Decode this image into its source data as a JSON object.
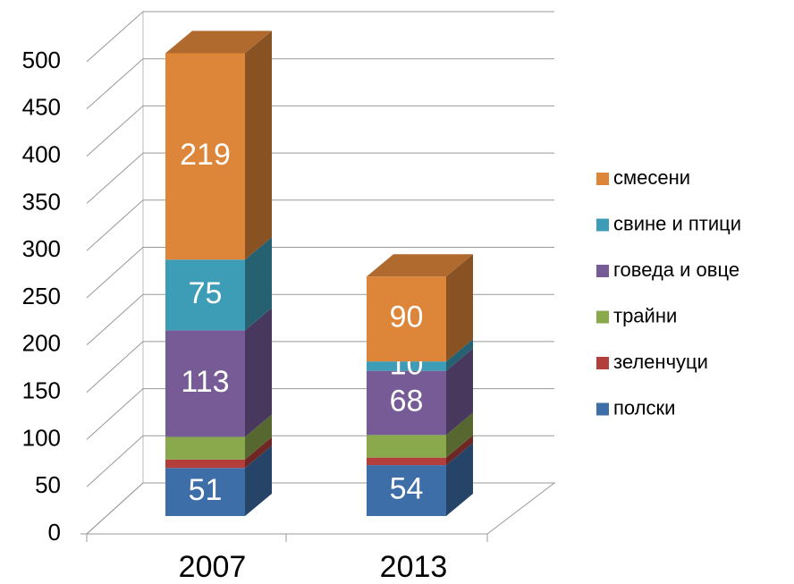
{
  "chart_data": {
    "type": "bar3d_stacked",
    "categories": [
      "2007",
      "2013"
    ],
    "series": [
      {
        "name": "полски",
        "color": "#3e6ea8",
        "values": [
          51,
          54
        ],
        "value_labels": [
          "51",
          "54"
        ]
      },
      {
        "name": "зеленчуци",
        "color": "#b33f3c",
        "values": [
          9,
          8
        ],
        "value_labels": [
          null,
          null
        ]
      },
      {
        "name": "трайни",
        "color": "#8aa84c",
        "values": [
          24,
          24
        ],
        "value_labels": [
          null,
          null
        ]
      },
      {
        "name": "говеда и овце",
        "color": "#765b97",
        "values": [
          113,
          68
        ],
        "value_labels": [
          "113",
          "68"
        ]
      },
      {
        "name": "свине и птици",
        "color": "#3d9db7",
        "values": [
          75,
          10
        ],
        "value_labels": [
          "75",
          "10"
        ]
      },
      {
        "name": "смесени",
        "color": "#dd8539",
        "values": [
          219,
          90
        ],
        "value_labels": [
          "219",
          "90"
        ]
      }
    ],
    "ylim": [
      0,
      500
    ],
    "yticks": [
      0,
      50,
      100,
      150,
      200,
      250,
      300,
      350,
      400,
      450,
      500
    ],
    "grid": true,
    "legend": "right"
  }
}
